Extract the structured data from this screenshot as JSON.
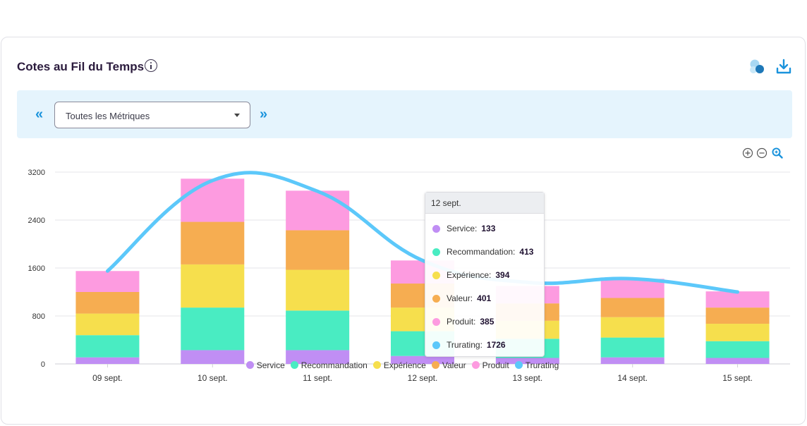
{
  "header": {
    "title": "Cotes au Fil du Temps"
  },
  "filter": {
    "prev_label": "«",
    "next_label": "»",
    "selected": "Toutes les Métriques"
  },
  "icons": {
    "info": "info-icon",
    "bubble": "bubble-chart-icon",
    "download": "download-icon",
    "zoom_in": "zoom-in-icon",
    "zoom_out": "zoom-out-icon",
    "zoom_reset": "zoom-reset-icon"
  },
  "colors": {
    "Service": "#c08ef4",
    "Recommandation": "#49ecc2",
    "Expérience": "#f6df4d",
    "Valeur": "#f6ad51",
    "Produit": "#fd9be0",
    "Trurating": "#5cc8fa"
  },
  "chart_data": {
    "type": "bar",
    "stacked": true,
    "categories": [
      "09 sept.",
      "10 sept.",
      "11 sept.",
      "12 sept.",
      "13 sept.",
      "14 sept.",
      "15 sept."
    ],
    "series": [
      {
        "name": "Service",
        "values": [
          110,
          230,
          230,
          133,
          100,
          110,
          100
        ]
      },
      {
        "name": "Recommandation",
        "values": [
          370,
          710,
          660,
          413,
          320,
          330,
          280
        ]
      },
      {
        "name": "Expérience",
        "values": [
          360,
          720,
          680,
          394,
          300,
          340,
          290
        ]
      },
      {
        "name": "Valeur",
        "values": [
          360,
          710,
          660,
          401,
          290,
          320,
          270
        ]
      },
      {
        "name": "Produit",
        "values": [
          350,
          720,
          660,
          385,
          290,
          320,
          270
        ]
      }
    ],
    "line_series": {
      "name": "Trurating",
      "values": [
        1550,
        3060,
        2880,
        1726,
        1360,
        1420,
        1200
      ]
    },
    "ylim": [
      0,
      3200
    ],
    "yticks": [
      "0",
      "800",
      "1600",
      "2400",
      "3200"
    ],
    "grid": true,
    "legend": "bottom-center",
    "tooltip": {
      "date": "12 sept.",
      "rows": [
        {
          "name": "Service",
          "value": "133"
        },
        {
          "name": "Recommandation",
          "value": "413"
        },
        {
          "name": "Expérience",
          "value": "394"
        },
        {
          "name": "Valeur",
          "value": "401"
        },
        {
          "name": "Produit",
          "value": "385"
        },
        {
          "name": "Trurating",
          "value": "1726"
        }
      ]
    },
    "legend_items": [
      "Service",
      "Recommandation",
      "Expérience",
      "Valeur",
      "Produit",
      "Trurating"
    ]
  }
}
